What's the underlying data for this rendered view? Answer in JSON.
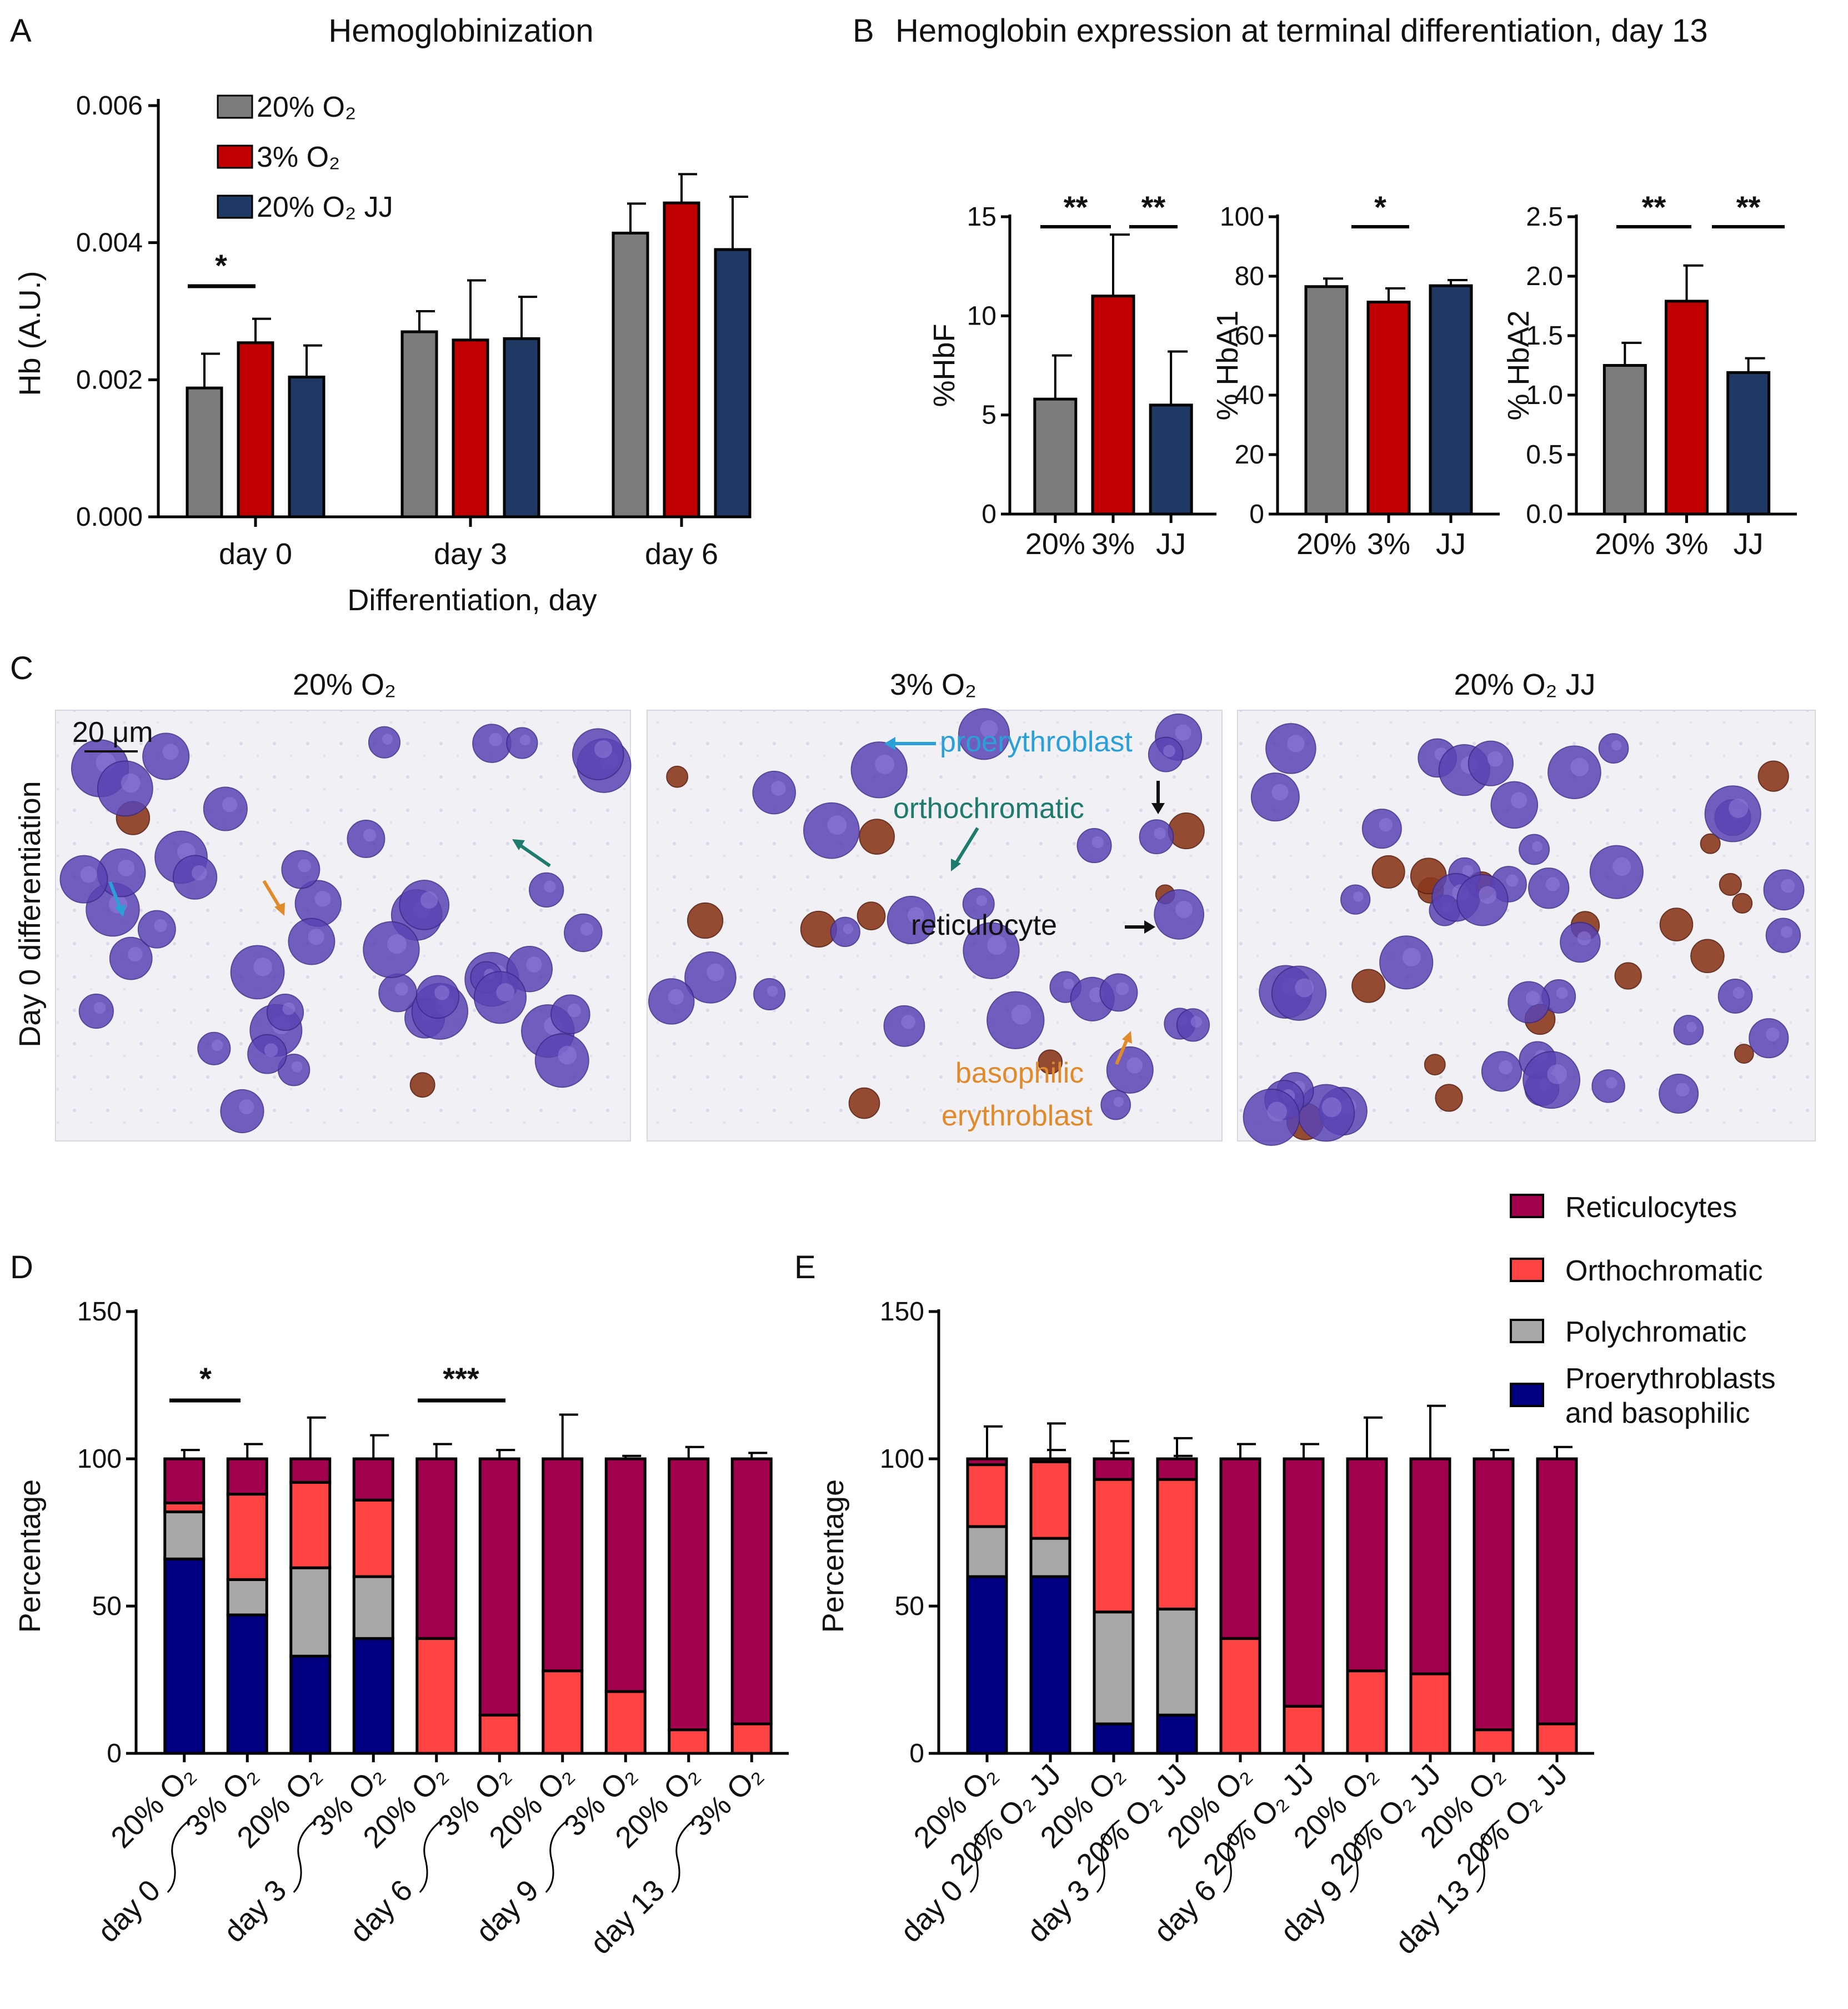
{
  "colors": {
    "gray": "#7c7c7c",
    "red": "#c00000",
    "navy": "#1f3864",
    "dark_navy": "#000080",
    "bright_red": "#ff4343",
    "light_gray": "#a8a8a8",
    "crimson": "#a0004c"
  },
  "panel_a": {
    "letter": "A",
    "chart_data": {
      "type": "bar",
      "title": "Hemoglobinization",
      "xlabel": "Differentiation, day",
      "ylabel": "Hb (A.U.)",
      "ylim": [
        0,
        0.006
      ],
      "yticks": [
        "0.000",
        "0.002",
        "0.004",
        "0.006"
      ],
      "categories": [
        "day 0",
        "day 3",
        "day 6"
      ],
      "legend": [
        "20% O₂",
        "3% O₂",
        "20% O₂ JJ"
      ],
      "series": [
        {
          "name": "20% O₂",
          "values": [
            0.00188,
            0.0027,
            0.00414
          ],
          "errors": [
            0.0005,
            0.0003,
            0.00043
          ]
        },
        {
          "name": "3% O₂",
          "values": [
            0.00254,
            0.00258,
            0.00458
          ],
          "errors": [
            0.00035,
            0.00087,
            0.00042
          ]
        },
        {
          "name": "20% O₂ JJ",
          "values": [
            0.00204,
            0.0026,
            0.0039
          ],
          "errors": [
            0.00046,
            0.00061,
            0.00077
          ]
        }
      ],
      "significance": [
        {
          "label": "*",
          "group": "day 0"
        }
      ]
    }
  },
  "panel_b": {
    "letter": "B",
    "title": "Hemoglobin expression at terminal differentiation, day 13",
    "chart_data": [
      {
        "type": "bar",
        "ylabel": "%HbF",
        "categories": [
          "20%",
          "3%",
          "JJ"
        ],
        "values": [
          5.8,
          11.0,
          5.5
        ],
        "errors": [
          2.2,
          3.1,
          2.7
        ],
        "ylim": [
          0,
          15
        ],
        "yticks": [
          "0",
          "5",
          "10",
          "15"
        ],
        "significance": [
          "**",
          "**"
        ]
      },
      {
        "type": "bar",
        "ylabel": "% HbA1",
        "categories": [
          "20%",
          "3%",
          "JJ"
        ],
        "values": [
          76.5,
          71.3,
          76.8
        ],
        "errors": [
          2.7,
          4.6,
          1.9
        ],
        "ylim": [
          0,
          100
        ],
        "yticks": [
          "0",
          "20",
          "40",
          "60",
          "80",
          "100"
        ],
        "significance": [
          "*"
        ]
      },
      {
        "type": "bar",
        "ylabel": "% HbA2",
        "categories": [
          "20%",
          "3%",
          "JJ"
        ],
        "values": [
          1.25,
          1.79,
          1.19
        ],
        "errors": [
          0.19,
          0.3,
          0.12
        ],
        "ylim": [
          0,
          2.5
        ],
        "yticks": [
          "0.0",
          "0.5",
          "1.0",
          "1.5",
          "2.0",
          "2.5"
        ],
        "significance": [
          "**",
          "**"
        ]
      }
    ]
  },
  "panel_c": {
    "letter": "C",
    "row_label": "Day 0 differentiation",
    "scale_bar": "20 μm",
    "images": [
      {
        "title": "20% O₂"
      },
      {
        "title": "3% O₂"
      },
      {
        "title": "20% O₂ JJ"
      }
    ],
    "annotations": {
      "proerythroblast": "proerythroblast",
      "orthochromatic": "orthochromatic",
      "reticulocyte": "reticulocyte",
      "basophilic": "basophilic",
      "erythroblast": "erythroblast"
    }
  },
  "legend_de": {
    "items": [
      "Reticulocytes",
      "Orthochromatic",
      "Polychromatic",
      "Proerythroblasts",
      "and basophilic"
    ]
  },
  "panel_d": {
    "letter": "D",
    "chart_data": {
      "type": "bar",
      "stacked": true,
      "ylabel": "Percentage",
      "ylim": [
        0,
        150
      ],
      "yticks": [
        "0",
        "50",
        "100",
        "150"
      ],
      "categories": [
        "20% O₂",
        "3% O₂",
        "20% O₂",
        "3% O₂",
        "20% O₂",
        "3% O₂",
        "20% O₂",
        "3% O₂",
        "20% O₂",
        "3% O₂"
      ],
      "groups": [
        "day 0",
        "day 3",
        "day 6",
        "day 9",
        "day 13"
      ],
      "series": [
        {
          "name": "Proerythroblasts and basophilic",
          "values": [
            66,
            47,
            33,
            39,
            0,
            0,
            0,
            0,
            0,
            0
          ],
          "errors": [
            4,
            0,
            0,
            0,
            0,
            0,
            0,
            0,
            0,
            0
          ]
        },
        {
          "name": "Polychromatic",
          "values": [
            16,
            12,
            30,
            21,
            0,
            0,
            0,
            0,
            0,
            0
          ],
          "errors": [
            3,
            8,
            13,
            7,
            0,
            0,
            0,
            0,
            0,
            0
          ]
        },
        {
          "name": "Orthochromatic",
          "values": [
            3,
            29,
            29,
            26,
            39,
            13,
            28,
            21,
            8,
            10
          ],
          "errors": [
            0,
            0,
            0,
            0,
            6,
            3,
            15,
            1,
            4,
            3
          ]
        },
        {
          "name": "Reticulocytes",
          "values": [
            15,
            12,
            8,
            14,
            61,
            87,
            72,
            79,
            92,
            90
          ],
          "errors": [
            3,
            5,
            14,
            8,
            5,
            3,
            15,
            1,
            4,
            2
          ]
        }
      ],
      "significance": [
        {
          "label": "*",
          "group": "day 0"
        },
        {
          "label": "***",
          "group": "day 6"
        }
      ]
    }
  },
  "panel_e": {
    "letter": "E",
    "chart_data": {
      "type": "bar",
      "stacked": true,
      "ylabel": "Percentage",
      "ylim": [
        0,
        150
      ],
      "yticks": [
        "0",
        "50",
        "100",
        "150"
      ],
      "categories": [
        "20% O₂",
        "20% O₂ JJ",
        "20% O₂",
        "20% O₂ JJ",
        "20% O₂",
        "20% O₂ JJ",
        "20% O₂",
        "20% O₂ JJ",
        "20% O₂",
        "20% O₂ JJ"
      ],
      "groups": [
        "day 0",
        "day 3",
        "day 6",
        "day 9",
        "day 13"
      ],
      "series": [
        {
          "name": "Proerythroblasts and basophilic",
          "values": [
            60,
            60,
            10,
            13,
            0,
            0,
            0,
            0,
            0,
            0
          ],
          "errors": [
            0,
            0,
            9,
            11,
            0,
            0,
            0,
            0,
            0,
            0
          ]
        },
        {
          "name": "Polychromatic",
          "values": [
            17,
            13,
            38,
            36,
            0,
            0,
            0,
            0,
            0,
            0
          ],
          "errors": [
            0,
            0,
            0,
            0,
            0,
            0,
            0,
            0,
            0,
            0
          ]
        },
        {
          "name": "Orthochromatic",
          "values": [
            21,
            26,
            45,
            44,
            39,
            16,
            28,
            27,
            8,
            10
          ],
          "errors": [
            2,
            4,
            9,
            8,
            6,
            6,
            15,
            18,
            4,
            5
          ]
        },
        {
          "name": "Reticulocytes",
          "values": [
            2,
            1,
            7,
            7,
            61,
            84,
            72,
            73,
            92,
            90
          ],
          "errors": [
            11,
            12,
            6,
            7,
            5,
            5,
            14,
            18,
            3,
            4
          ]
        }
      ]
    }
  }
}
